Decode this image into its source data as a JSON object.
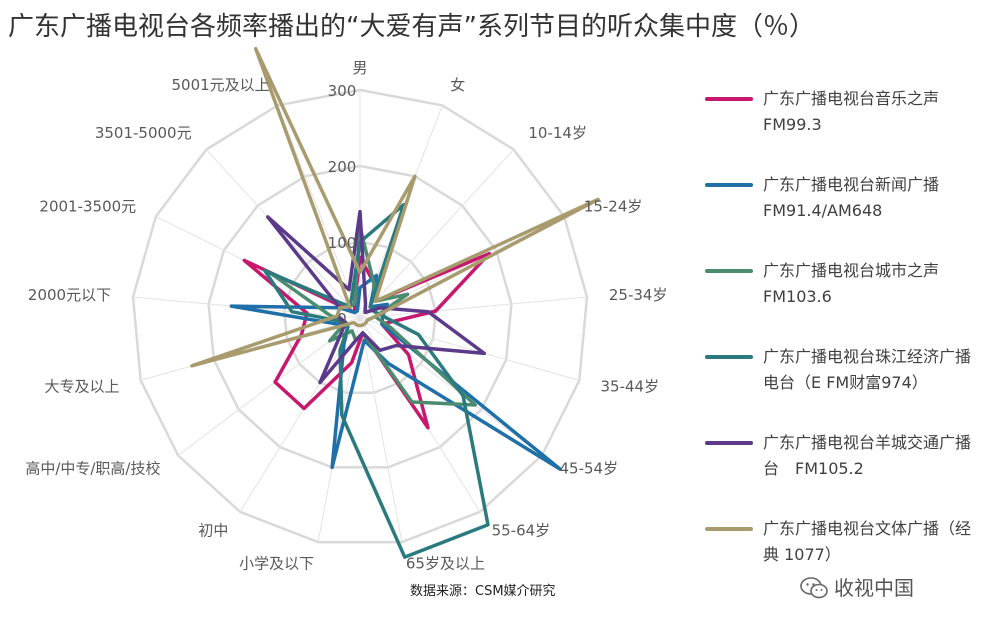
{
  "title": "广东广播电视台各频率播出的“大爱有声”系列节目的听众集中度（％）",
  "source": "数据来源：CSM媒介研究",
  "watermark": "收视中国",
  "watermark_icon": "wechat-icon",
  "chart_data": {
    "type": "radar",
    "title": "广东广播电视台各频率播出的“大爱有声”系列节目的听众集中度（％）",
    "categories": [
      "男",
      "女",
      "10-14岁",
      "15-24岁",
      "25-34岁",
      "35-44岁",
      "45-54岁",
      "55-64岁",
      "65岁及以上",
      "小学及以下",
      "初中",
      "高中/中专/职高/技校",
      "大专及以上",
      "2000元以下",
      "2001-3500元",
      "3501-5000元",
      "5001元及以上"
    ],
    "ticks": [
      0,
      100,
      200,
      300
    ],
    "rlim": [
      0,
      300
    ],
    "grid": true,
    "legend_position": "right",
    "series": [
      {
        "name": "广东广播电视台音乐之声 FM99.3",
        "color": "#C8186E",
        "values": [
          80,
          50,
          30,
          190,
          100,
          30,
          80,
          170,
          20,
          60,
          140,
          140,
          80,
          70,
          170,
          10,
          20
        ]
      },
      {
        "name": "广东广播电视台新闻广播 FM91.4/AM648",
        "color": "#1F6FA8",
        "values": [
          40,
          60,
          20,
          40,
          30,
          30,
          330,
          70,
          30,
          200,
          40,
          20,
          30,
          170,
          30,
          10,
          10
        ]
      },
      {
        "name": "广东广播电视台城市之声 FM103.6",
        "color": "#4C8C6E",
        "values": [
          120,
          50,
          30,
          70,
          20,
          40,
          190,
          130,
          20,
          30,
          20,
          50,
          20,
          40,
          130,
          20,
          20
        ]
      },
      {
        "name": "广东广播电视台珠江经济广播电台（E FM财富974）",
        "color": "#2A7A7E",
        "values": [
          100,
          160,
          20,
          20,
          30,
          80,
          170,
          320,
          320,
          130,
          50,
          20,
          20,
          90,
          140,
          20,
          30
        ]
      },
      {
        "name": "广东广播电视台羊城交通广播台　FM105.2",
        "color": "#5C3A8A",
        "values": [
          140,
          20,
          10,
          30,
          90,
          170,
          60,
          50,
          20,
          30,
          100,
          30,
          20,
          30,
          30,
          180,
          40
        ]
      },
      {
        "name": "广东广播电视台文体广播（经典 1077）",
        "color": "#A89C6E",
        "values": [
          60,
          200,
          30,
          350,
          20,
          10,
          10,
          10,
          10,
          10,
          10,
          10,
          230,
          30,
          30,
          20,
          380
        ]
      }
    ]
  },
  "legend": [
    {
      "text": "广东广播电视台音乐之声 FM99.3",
      "color": "#C8186E"
    },
    {
      "text": "广东广播电视台新闻广播 FM91.4/AM648",
      "color": "#1F6FA8"
    },
    {
      "text": "广东广播电视台城市之声 FM103.6",
      "color": "#4C8C6E"
    },
    {
      "text": "广东广播电视台珠江经济广播电台（E FM财富974）",
      "color": "#2A7A7E"
    },
    {
      "text": "广东广播电视台羊城交通广播台　FM105.2",
      "color": "#5C3A8A"
    },
    {
      "text": "广东广播电视台文体广播（经典 1077）",
      "color": "#A89C6E"
    }
  ]
}
